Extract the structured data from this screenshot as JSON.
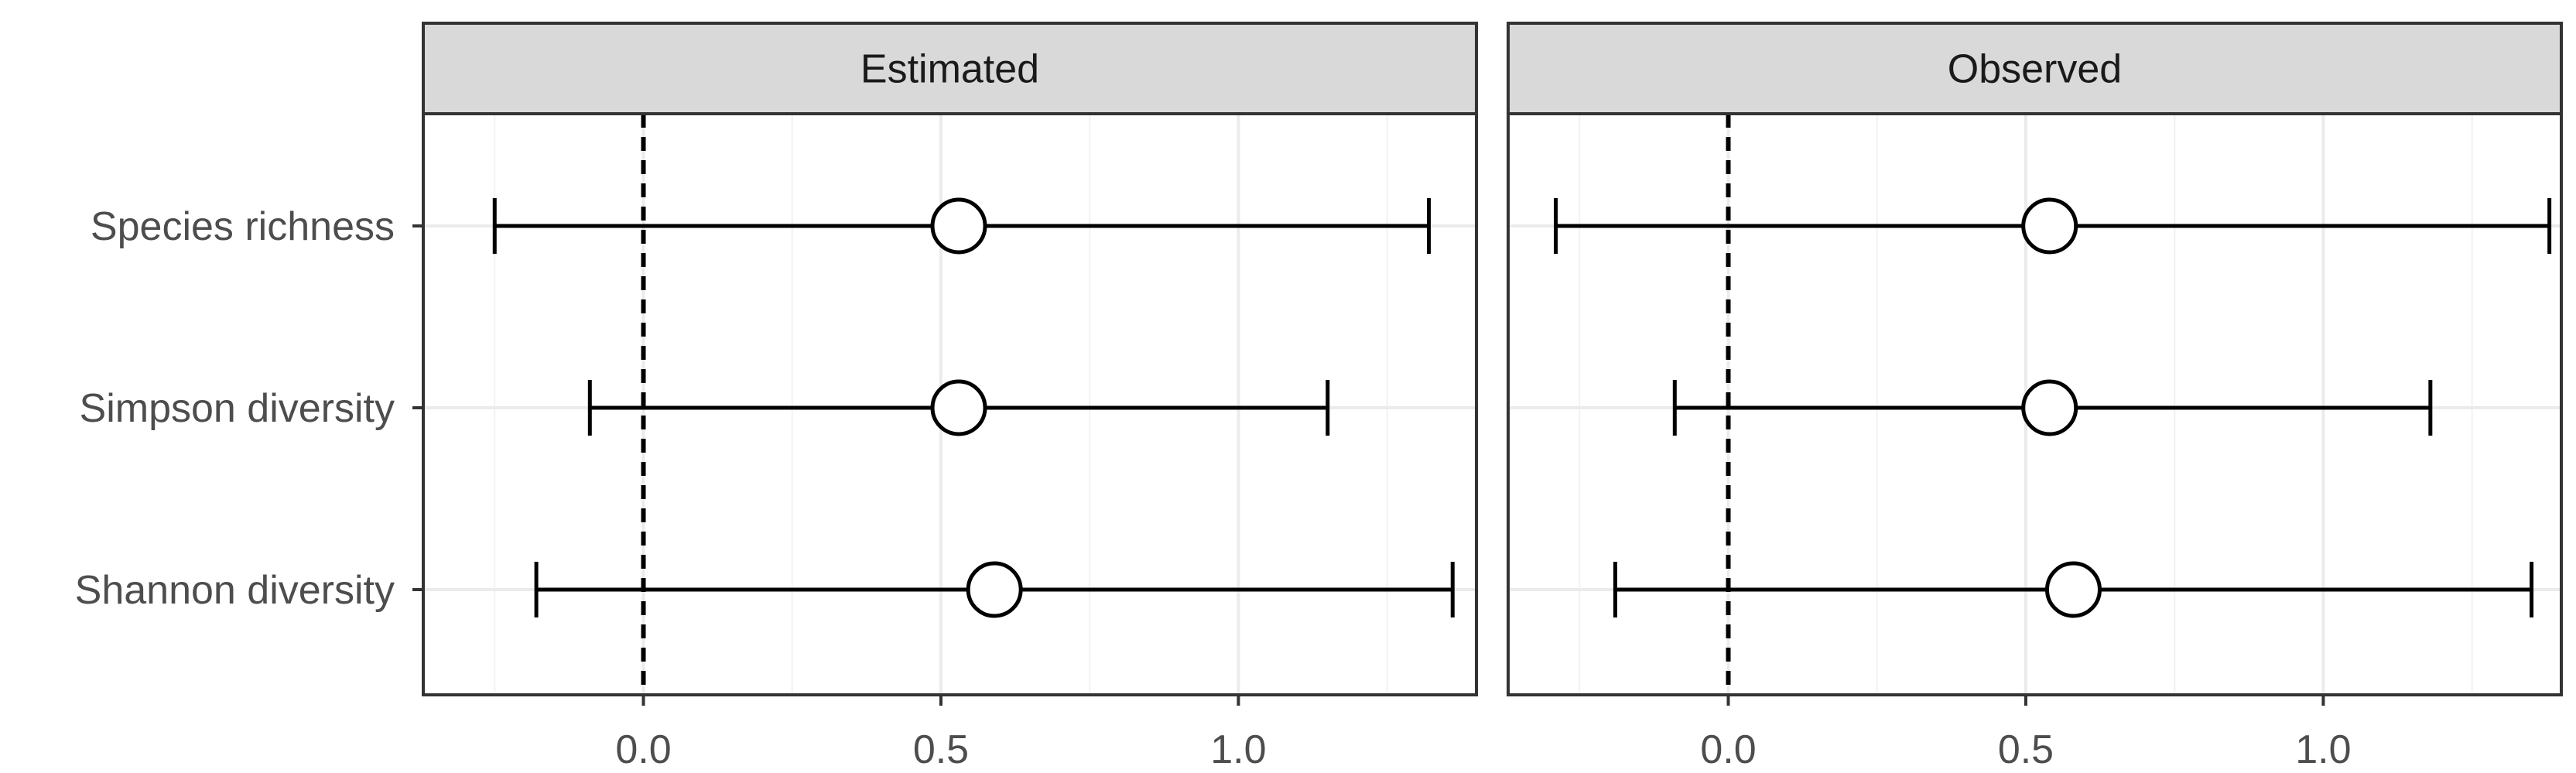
{
  "chart_data": {
    "type": "scatter",
    "subtype": "forest-plot-point-interval",
    "categories": [
      "Species richness",
      "Simpson diversity",
      "Shannon diversity"
    ],
    "xticks": [
      0.0,
      0.5,
      1.0
    ],
    "xtick_labels": [
      "0.0",
      "0.5",
      "1.0"
    ],
    "reference_line": 0.0,
    "grid": true,
    "xlabel": "",
    "ylabel": "",
    "panels": [
      {
        "strip": "Estimated",
        "xlim": [
          -0.37,
          1.4
        ],
        "points": [
          {
            "category": "Species richness",
            "estimate": 0.53,
            "lower": -0.25,
            "upper": 1.32
          },
          {
            "category": "Simpson diversity",
            "estimate": 0.53,
            "lower": -0.09,
            "upper": 1.15
          },
          {
            "category": "Shannon diversity",
            "estimate": 0.59,
            "lower": -0.18,
            "upper": 1.36
          }
        ]
      },
      {
        "strip": "Observed",
        "xlim": [
          -0.37,
          1.4
        ],
        "points": [
          {
            "category": "Species richness",
            "estimate": 0.54,
            "lower": -0.29,
            "upper": 1.38
          },
          {
            "category": "Simpson diversity",
            "estimate": 0.54,
            "lower": -0.09,
            "upper": 1.18
          },
          {
            "category": "Shannon diversity",
            "estimate": 0.58,
            "lower": -0.19,
            "upper": 1.35
          }
        ]
      }
    ]
  }
}
